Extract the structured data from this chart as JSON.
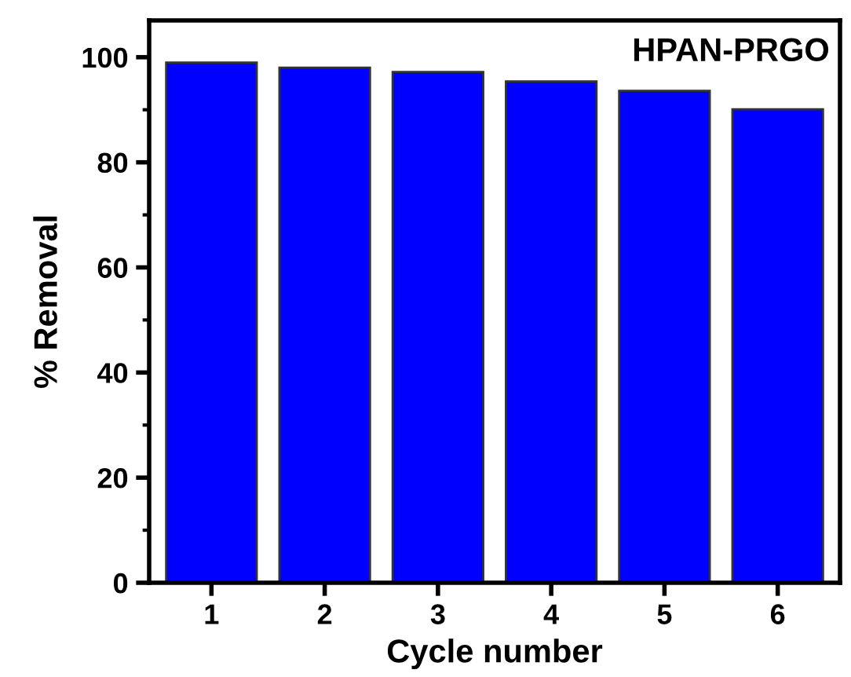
{
  "chart_data": {
    "type": "bar",
    "xlabel": "Cycle number",
    "ylabel": "% Removal",
    "categories": [
      "1",
      "2",
      "3",
      "4",
      "5",
      "6"
    ],
    "values": [
      99.0,
      98.0,
      97.2,
      95.4,
      93.6,
      90.1
    ],
    "color": "#0000ff",
    "ylim": [
      0,
      107
    ],
    "yticks": [
      0,
      20,
      40,
      60,
      80,
      100
    ],
    "annotations": [
      "HPAN-PRGO"
    ],
    "grid": false,
    "legend": false
  }
}
